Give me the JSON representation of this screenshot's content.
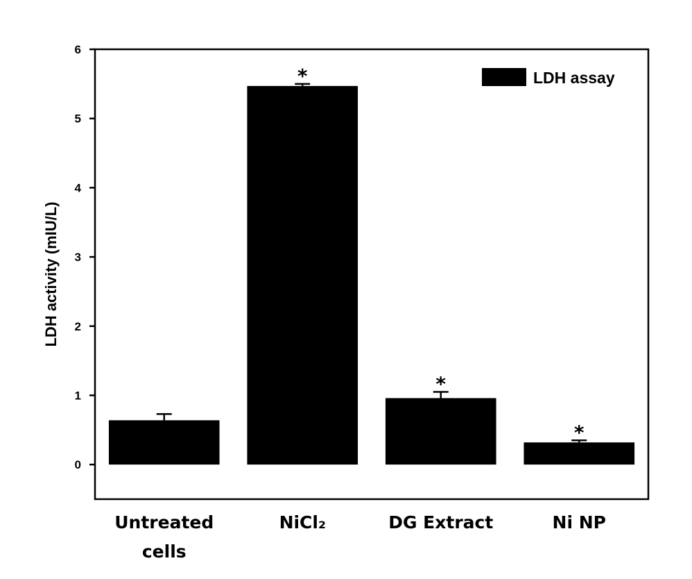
{
  "chart_data": {
    "type": "bar",
    "title": "",
    "xlabel": "",
    "ylabel": "LDH activity (mIU/L)",
    "ylim": [
      -0.5,
      6
    ],
    "yticks": [
      0,
      1,
      2,
      3,
      4,
      5,
      6
    ],
    "grid": false,
    "legend": {
      "placement": "top-right",
      "entries": [
        "LDH assay"
      ]
    },
    "categories": [
      [
        "Untreated",
        "cells"
      ],
      [
        "NiCl₂"
      ],
      [
        "DG Extract"
      ],
      [
        "Ni NP"
      ]
    ],
    "series": [
      {
        "name": "LDH assay",
        "color": "#000000",
        "values": [
          0.64,
          5.47,
          0.96,
          0.32
        ],
        "errors": [
          0.09,
          0.03,
          0.09,
          0.03
        ],
        "significant": [
          false,
          true,
          true,
          true
        ]
      }
    ],
    "annotation_symbol": "*"
  }
}
